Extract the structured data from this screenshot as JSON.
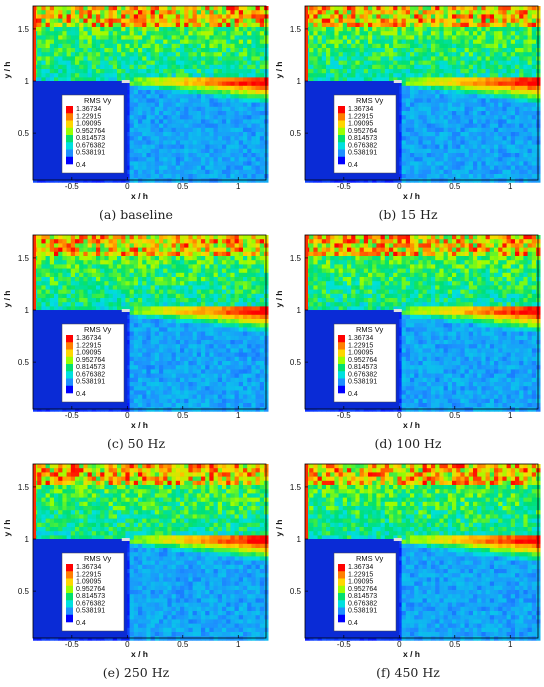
{
  "figure": {
    "colorbar": {
      "title": "RMS Vy",
      "levels": [
        "1.36734",
        "1.22915",
        "1.09095",
        "0.952764",
        "0.814573",
        "0.676382",
        "0.538191",
        "0.4"
      ],
      "colors": [
        "#ff0000",
        "#ff7f00",
        "#ffd700",
        "#9aff00",
        "#00e070",
        "#00e0e0",
        "#1e90ff",
        "#0000ff"
      ]
    },
    "xlabel": "x / h",
    "ylabel": "y / h"
  },
  "chart_data": [
    {
      "type": "heatmap",
      "caption": "(a) baseline",
      "xlabel": "x / h",
      "ylabel": "y / h",
      "xlim": [
        -0.85,
        1.25
      ],
      "ylim": [
        0.05,
        1.72
      ],
      "xticks": [
        "-0.5",
        "0",
        "0.5",
        "1"
      ],
      "yticks": [
        "0.5",
        "1",
        "1.5"
      ],
      "legend": {
        "title": "RMS Vy",
        "min": 0.4,
        "max": 1.36734,
        "position": "lower-left"
      }
    },
    {
      "type": "heatmap",
      "caption": "(b) 15 Hz",
      "xlabel": "x / h",
      "ylabel": "y / h",
      "xlim": [
        -0.85,
        1.25
      ],
      "ylim": [
        0.05,
        1.72
      ],
      "xticks": [
        "-0.5",
        "0",
        "0.5",
        "1"
      ],
      "yticks": [
        "0.5",
        "1",
        "1.5"
      ],
      "legend": {
        "title": "RMS Vy",
        "min": 0.4,
        "max": 1.36734,
        "position": "lower-left"
      }
    },
    {
      "type": "heatmap",
      "caption": "(c) 50 Hz",
      "xlabel": "x / h",
      "ylabel": "y / h",
      "xlim": [
        -0.85,
        1.25
      ],
      "ylim": [
        0.05,
        1.72
      ],
      "xticks": [
        "-0.5",
        "0",
        "0.5",
        "1"
      ],
      "yticks": [
        "0.5",
        "1",
        "1.5"
      ],
      "legend": {
        "title": "RMS Vy",
        "min": 0.4,
        "max": 1.36734,
        "position": "lower-left"
      }
    },
    {
      "type": "heatmap",
      "caption": "(d) 100 Hz",
      "xlabel": "x / h",
      "ylabel": "y / h",
      "xlim": [
        -0.85,
        1.25
      ],
      "ylim": [
        0.05,
        1.72
      ],
      "xticks": [
        "-0.5",
        "0",
        "0.5",
        "1"
      ],
      "yticks": [
        "0.5",
        "1",
        "1.5"
      ],
      "legend": {
        "title": "RMS Vy",
        "min": 0.4,
        "max": 1.36734,
        "position": "lower-left"
      }
    },
    {
      "type": "heatmap",
      "caption": "(e) 250 Hz",
      "xlabel": "x / h",
      "ylabel": "y / h",
      "xlim": [
        -0.85,
        1.25
      ],
      "ylim": [
        0.05,
        1.72
      ],
      "xticks": [
        "-0.5",
        "0",
        "0.5",
        "1"
      ],
      "yticks": [
        "0.5",
        "1",
        "1.5"
      ],
      "legend": {
        "title": "RMS Vy",
        "min": 0.4,
        "max": 1.36734,
        "position": "lower-left"
      }
    },
    {
      "type": "heatmap",
      "caption": "(f) 450 Hz",
      "xlabel": "x / h",
      "ylabel": "y / h",
      "xlim": [
        -0.85,
        1.25
      ],
      "ylim": [
        0.05,
        1.72
      ],
      "xticks": [
        "-0.5",
        "0",
        "0.5",
        "1"
      ],
      "yticks": [
        "0.5",
        "1",
        "1.5"
      ],
      "legend": {
        "title": "RMS Vy",
        "min": 0.4,
        "max": 1.36734,
        "position": "lower-left"
      }
    }
  ]
}
